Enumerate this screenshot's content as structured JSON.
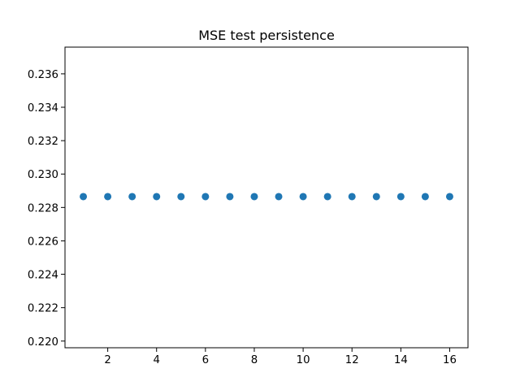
{
  "chart_data": {
    "type": "scatter",
    "title": "MSE test persistence",
    "xlabel": "",
    "ylabel": "",
    "x": [
      1,
      2,
      3,
      4,
      5,
      6,
      7,
      8,
      9,
      10,
      11,
      12,
      13,
      14,
      15,
      16
    ],
    "series": [
      {
        "values": [
          0.22865,
          0.22865,
          0.22865,
          0.22865,
          0.22865,
          0.22865,
          0.22865,
          0.22865,
          0.22865,
          0.22865,
          0.22865,
          0.22865,
          0.22865,
          0.22865,
          0.22865,
          0.22865
        ],
        "color": "#1f77b4"
      }
    ],
    "xlim": [
      0.25,
      16.75
    ],
    "ylim": [
      0.2196,
      0.2376
    ],
    "xticks": [
      2,
      4,
      6,
      8,
      10,
      12,
      14,
      16
    ],
    "yticks": [
      0.22,
      0.222,
      0.224,
      0.226,
      0.228,
      0.23,
      0.232,
      0.234,
      0.236
    ],
    "ytick_labels": [
      "0.220",
      "0.222",
      "0.224",
      "0.226",
      "0.228",
      "0.230",
      "0.232",
      "0.234",
      "0.236"
    ],
    "grid": false,
    "legend": false
  }
}
